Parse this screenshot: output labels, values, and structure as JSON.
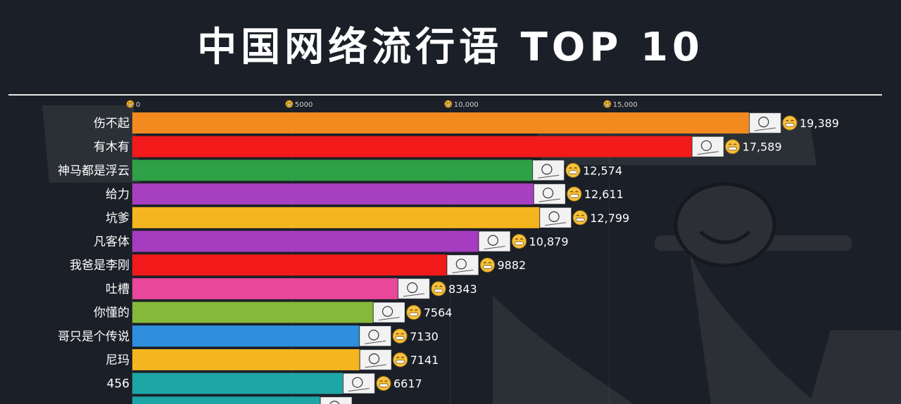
{
  "title": "中国网络流行语 TOP 10",
  "colors": {
    "background": "#1b1f27",
    "text": "#ffffff",
    "tick": "#cfcfcf",
    "emoji": "#f6c23e"
  },
  "chart_data": {
    "type": "bar",
    "orientation": "horizontal",
    "title": "中国网络流行语 TOP 10",
    "xlim": [
      0,
      19389
    ],
    "ticks": [
      {
        "value": 0,
        "label": "0"
      },
      {
        "value": 5000,
        "label": "5000"
      },
      {
        "value": 10000,
        "label": "10,000"
      },
      {
        "value": 15000,
        "label": "15,000"
      }
    ],
    "bars": [
      {
        "category": "伤不起",
        "value": 19389,
        "label": "19,389",
        "color": "#f28a1f"
      },
      {
        "category": "有木有",
        "value": 17589,
        "label": "17,589",
        "color": "#f21a1a"
      },
      {
        "category": "神马都是浮云",
        "value": 12574,
        "label": "12,574",
        "color": "#2ea046"
      },
      {
        "category": "给力",
        "value": 12611,
        "label": "12,611",
        "color": "#a640c0"
      },
      {
        "category": "坑爹",
        "value": 12799,
        "label": "12,799",
        "color": "#f5b51e"
      },
      {
        "category": "凡客体",
        "value": 10879,
        "label": "10,879",
        "color": "#a63cbf"
      },
      {
        "category": "我爸是李刚",
        "value": 9882,
        "label": "9882",
        "color": "#f21a1a"
      },
      {
        "category": "吐槽",
        "value": 8343,
        "label": "8343",
        "color": "#e8479a"
      },
      {
        "category": "你懂的",
        "value": 7564,
        "label": "7564",
        "color": "#86b83a"
      },
      {
        "category": "哥只是个传说",
        "value": 7130,
        "label": "7130",
        "color": "#2f8fde"
      },
      {
        "category": "尼玛",
        "value": 7141,
        "label": "7141",
        "color": "#f5b51e"
      },
      {
        "category": "456",
        "value": 6617,
        "label": "6617",
        "color": "#1ea5a6"
      },
      {
        "category": "",
        "value": 5900,
        "label": "",
        "color": "#1ea5a6"
      }
    ]
  }
}
